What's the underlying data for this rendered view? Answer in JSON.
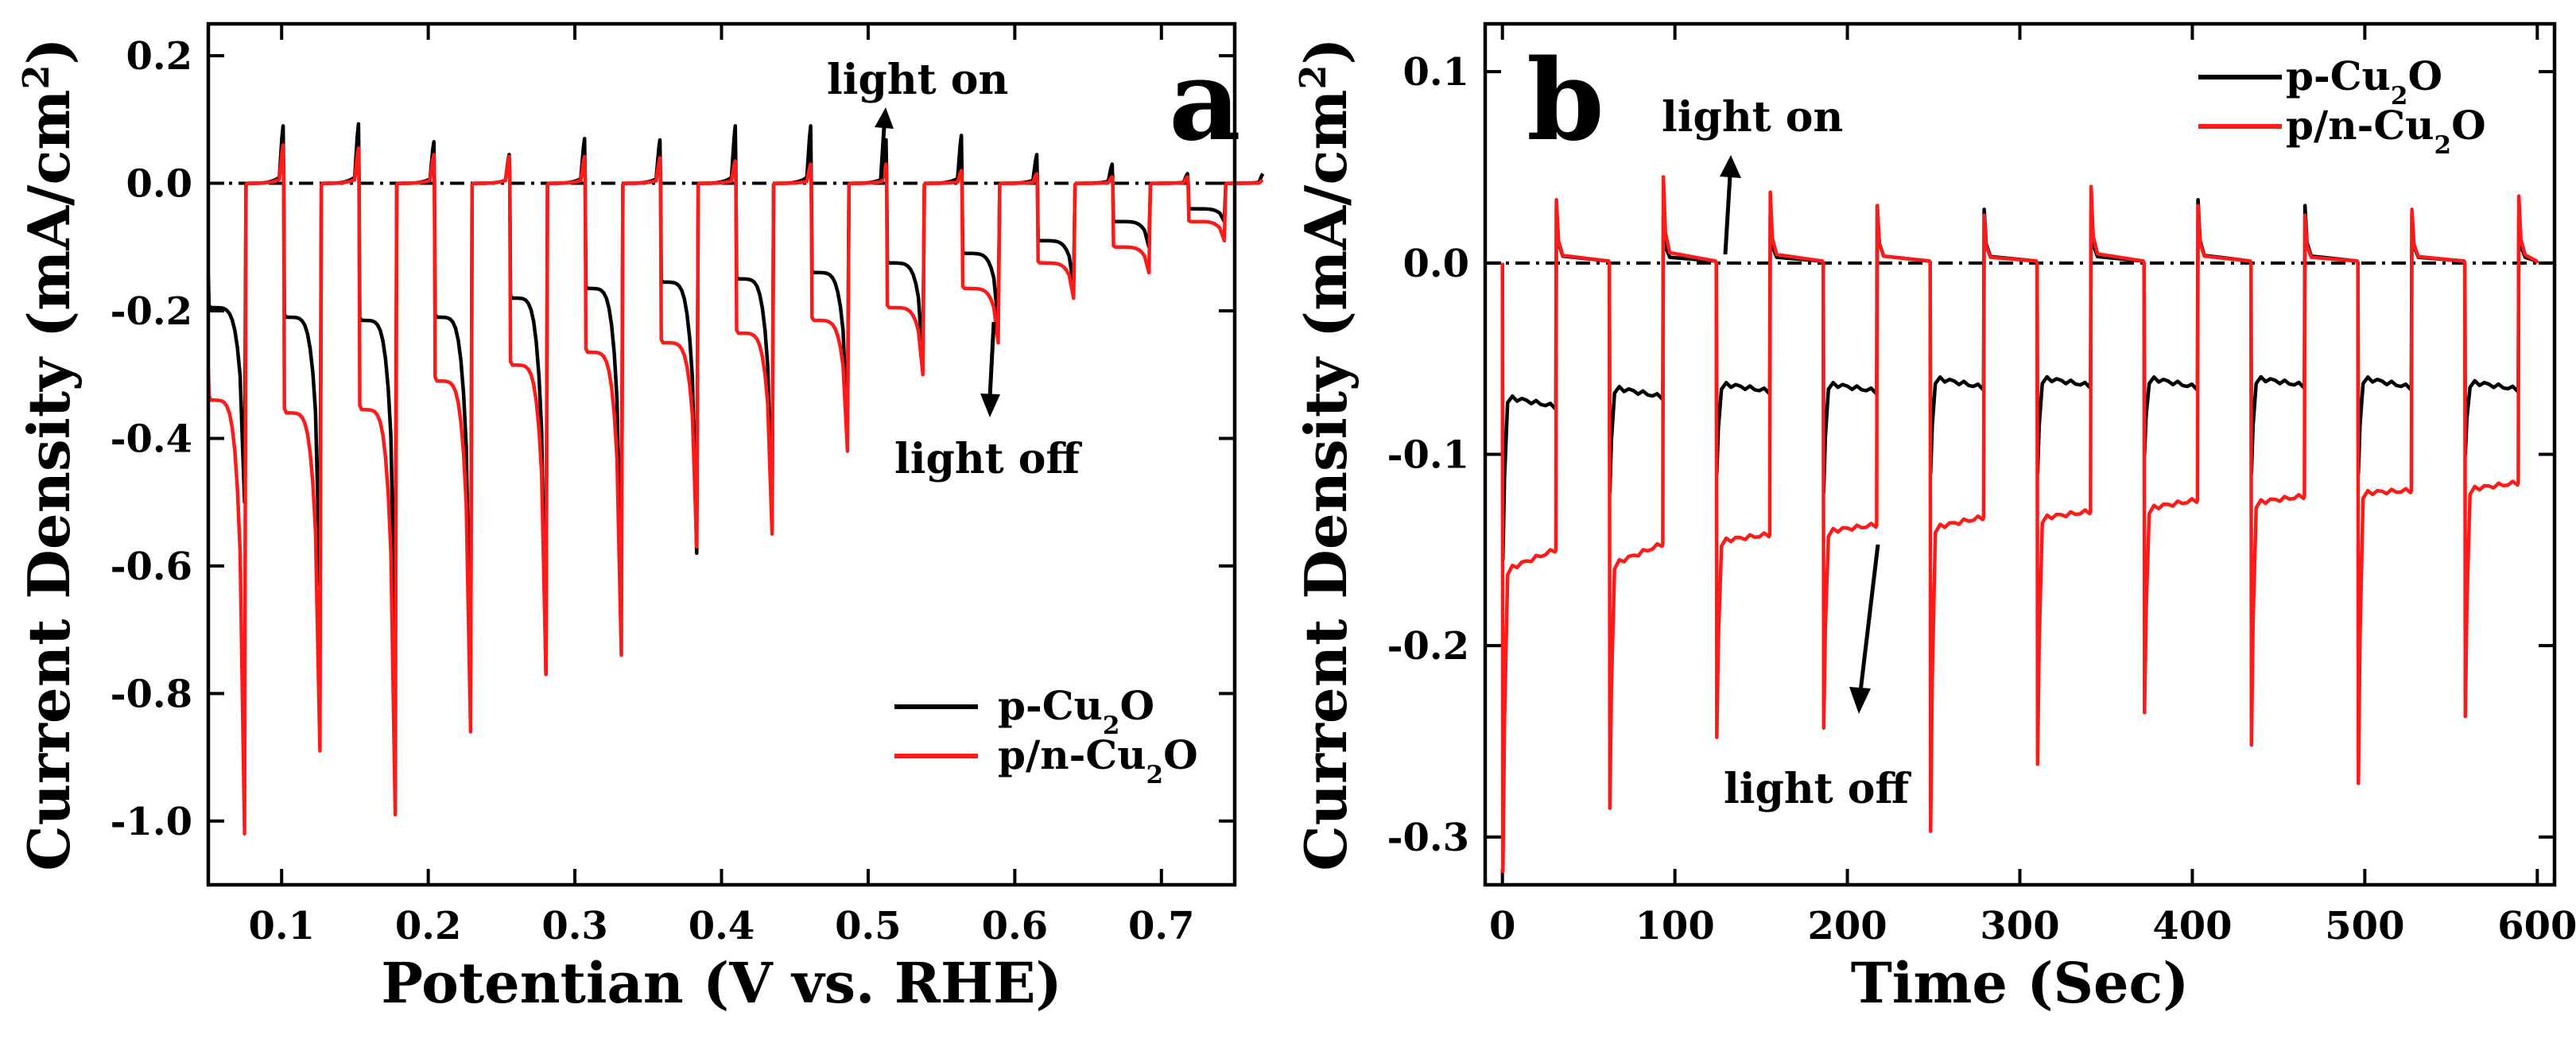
{
  "colors": {
    "p_cu2o": "#000000",
    "pn_cu2o": "#ff1a1a",
    "axis": "#000000"
  },
  "chart_data": [
    {
      "panel": "a",
      "type": "line",
      "xlabel": "Potentian (V vs. RHE)",
      "ylabel": "Current Density (mA/cm",
      "ylabel_sup": "2",
      "ylabel_end": ")",
      "xlim": [
        0.05,
        0.75
      ],
      "ylim": [
        -1.1,
        0.25
      ],
      "xticks": [
        "0.1",
        "0.2",
        "0.3",
        "0.4",
        "0.5",
        "0.6",
        "0.7"
      ],
      "yticks": [
        "0.2",
        "0.0",
        "-0.2",
        "-0.4",
        "-0.6",
        "-0.8",
        "-1.0"
      ],
      "legend_position": "lower-right",
      "legend": [
        {
          "prefix": "p-Cu",
          "sub": "2",
          "suffix": "O",
          "color": "#000000"
        },
        {
          "prefix": "p/n-Cu",
          "sub": "2",
          "suffix": "O",
          "color": "#ff1a1a"
        }
      ],
      "annotations": {
        "on": "light on",
        "off": "light off"
      },
      "period": 0.0514,
      "cycle_starts": [
        0.05,
        0.1014,
        0.1528,
        0.2042,
        0.2556,
        0.307,
        0.3584,
        0.4098,
        0.4612,
        0.5126,
        0.564,
        0.6154,
        0.6668,
        0.7182
      ],
      "series": [
        {
          "name": "p-Cu2O",
          "dark_spike": [
            0.09,
            0.093,
            0.065,
            0.045,
            0.07,
            0.068,
            0.09,
            0.09,
            0.068,
            0.075,
            0.045,
            0.03,
            0.015,
            0.015
          ],
          "light_level": [
            -0.195,
            -0.21,
            -0.215,
            -0.21,
            -0.18,
            -0.165,
            -0.155,
            -0.15,
            -0.14,
            -0.125,
            -0.11,
            -0.09,
            -0.06,
            -0.04
          ],
          "light_spike": [
            -0.5,
            -0.63,
            -0.73,
            -0.79,
            -0.77,
            -0.66,
            -0.58,
            -0.54,
            -0.4,
            -0.28,
            -0.22,
            -0.16,
            -0.1,
            -0.06
          ]
        },
        {
          "name": "p/n-Cu2O",
          "dark_spike": [
            0.06,
            0.055,
            0.045,
            0.042,
            0.042,
            0.04,
            0.035,
            0.03,
            0.03,
            0.02,
            0.015,
            0.01,
            0.01,
            0.005
          ],
          "light_level": [
            -0.34,
            -0.36,
            -0.355,
            -0.31,
            -0.285,
            -0.265,
            -0.25,
            -0.235,
            -0.215,
            -0.195,
            -0.165,
            -0.125,
            -0.1,
            -0.06
          ],
          "light_spike": [
            -1.02,
            -0.89,
            -0.99,
            -0.86,
            -0.77,
            -0.74,
            -0.57,
            -0.55,
            -0.42,
            -0.3,
            -0.25,
            -0.18,
            -0.14,
            -0.09
          ]
        }
      ]
    },
    {
      "panel": "b",
      "type": "line",
      "xlabel": "Time (Sec)",
      "ylabel": "Current Density (mA/cm",
      "ylabel_sup": "2",
      "ylabel_end": ")",
      "xlim": [
        -10,
        610
      ],
      "ylim": [
        -0.325,
        0.125
      ],
      "xticks": [
        "0",
        "100",
        "200",
        "300",
        "400",
        "500",
        "600"
      ],
      "yticks": [
        "0.1",
        "0.0",
        "-0.1",
        "-0.2",
        "-0.3"
      ],
      "legend_position": "top-right",
      "legend": [
        {
          "prefix": "p-Cu",
          "sub": "2",
          "suffix": "O",
          "color": "#000000"
        },
        {
          "prefix": "p/n-Cu",
          "sub": "2",
          "suffix": "O",
          "color": "#ff1a1a"
        }
      ],
      "annotations": {
        "on": "light on",
        "off": "light off"
      },
      "light_on_times": [
        0,
        62,
        124,
        186,
        248,
        310,
        372,
        434,
        496,
        558
      ],
      "light_off_times": [
        31,
        93,
        155,
        217,
        279,
        341,
        403,
        465,
        527,
        589
      ],
      "end_time": 600,
      "series": [
        {
          "name": "p-Cu2O",
          "on_spike": [
            -0.155,
            -0.12,
            -0.11,
            -0.12,
            -0.11,
            -0.11,
            -0.1,
            -0.11,
            -0.11,
            -0.1
          ],
          "plateau_start": [
            -0.07,
            -0.065,
            -0.063,
            -0.063,
            -0.06,
            -0.06,
            -0.06,
            -0.06,
            -0.06,
            -0.062
          ],
          "plateau_end": [
            -0.075,
            -0.07,
            -0.067,
            -0.067,
            -0.065,
            -0.064,
            -0.065,
            -0.064,
            -0.065,
            -0.066
          ],
          "off_spike": [
            0.03,
            0.025,
            0.025,
            0.03,
            0.028,
            0.028,
            0.033,
            0.03,
            0.025,
            0.025
          ]
        },
        {
          "name": "p/n-Cu2O",
          "on_spike": [
            -0.318,
            -0.285,
            -0.248,
            -0.243,
            -0.297,
            -0.262,
            -0.235,
            -0.252,
            -0.272,
            -0.237
          ],
          "plateau_start": [
            -0.16,
            -0.157,
            -0.145,
            -0.14,
            -0.138,
            -0.133,
            -0.128,
            -0.125,
            -0.12,
            -0.118
          ],
          "plateau_end": [
            -0.15,
            -0.147,
            -0.142,
            -0.137,
            -0.133,
            -0.13,
            -0.124,
            -0.122,
            -0.119,
            -0.115
          ],
          "off_spike": [
            0.033,
            0.045,
            0.037,
            0.03,
            0.025,
            0.04,
            0.03,
            0.025,
            0.028,
            0.035
          ]
        }
      ]
    }
  ]
}
